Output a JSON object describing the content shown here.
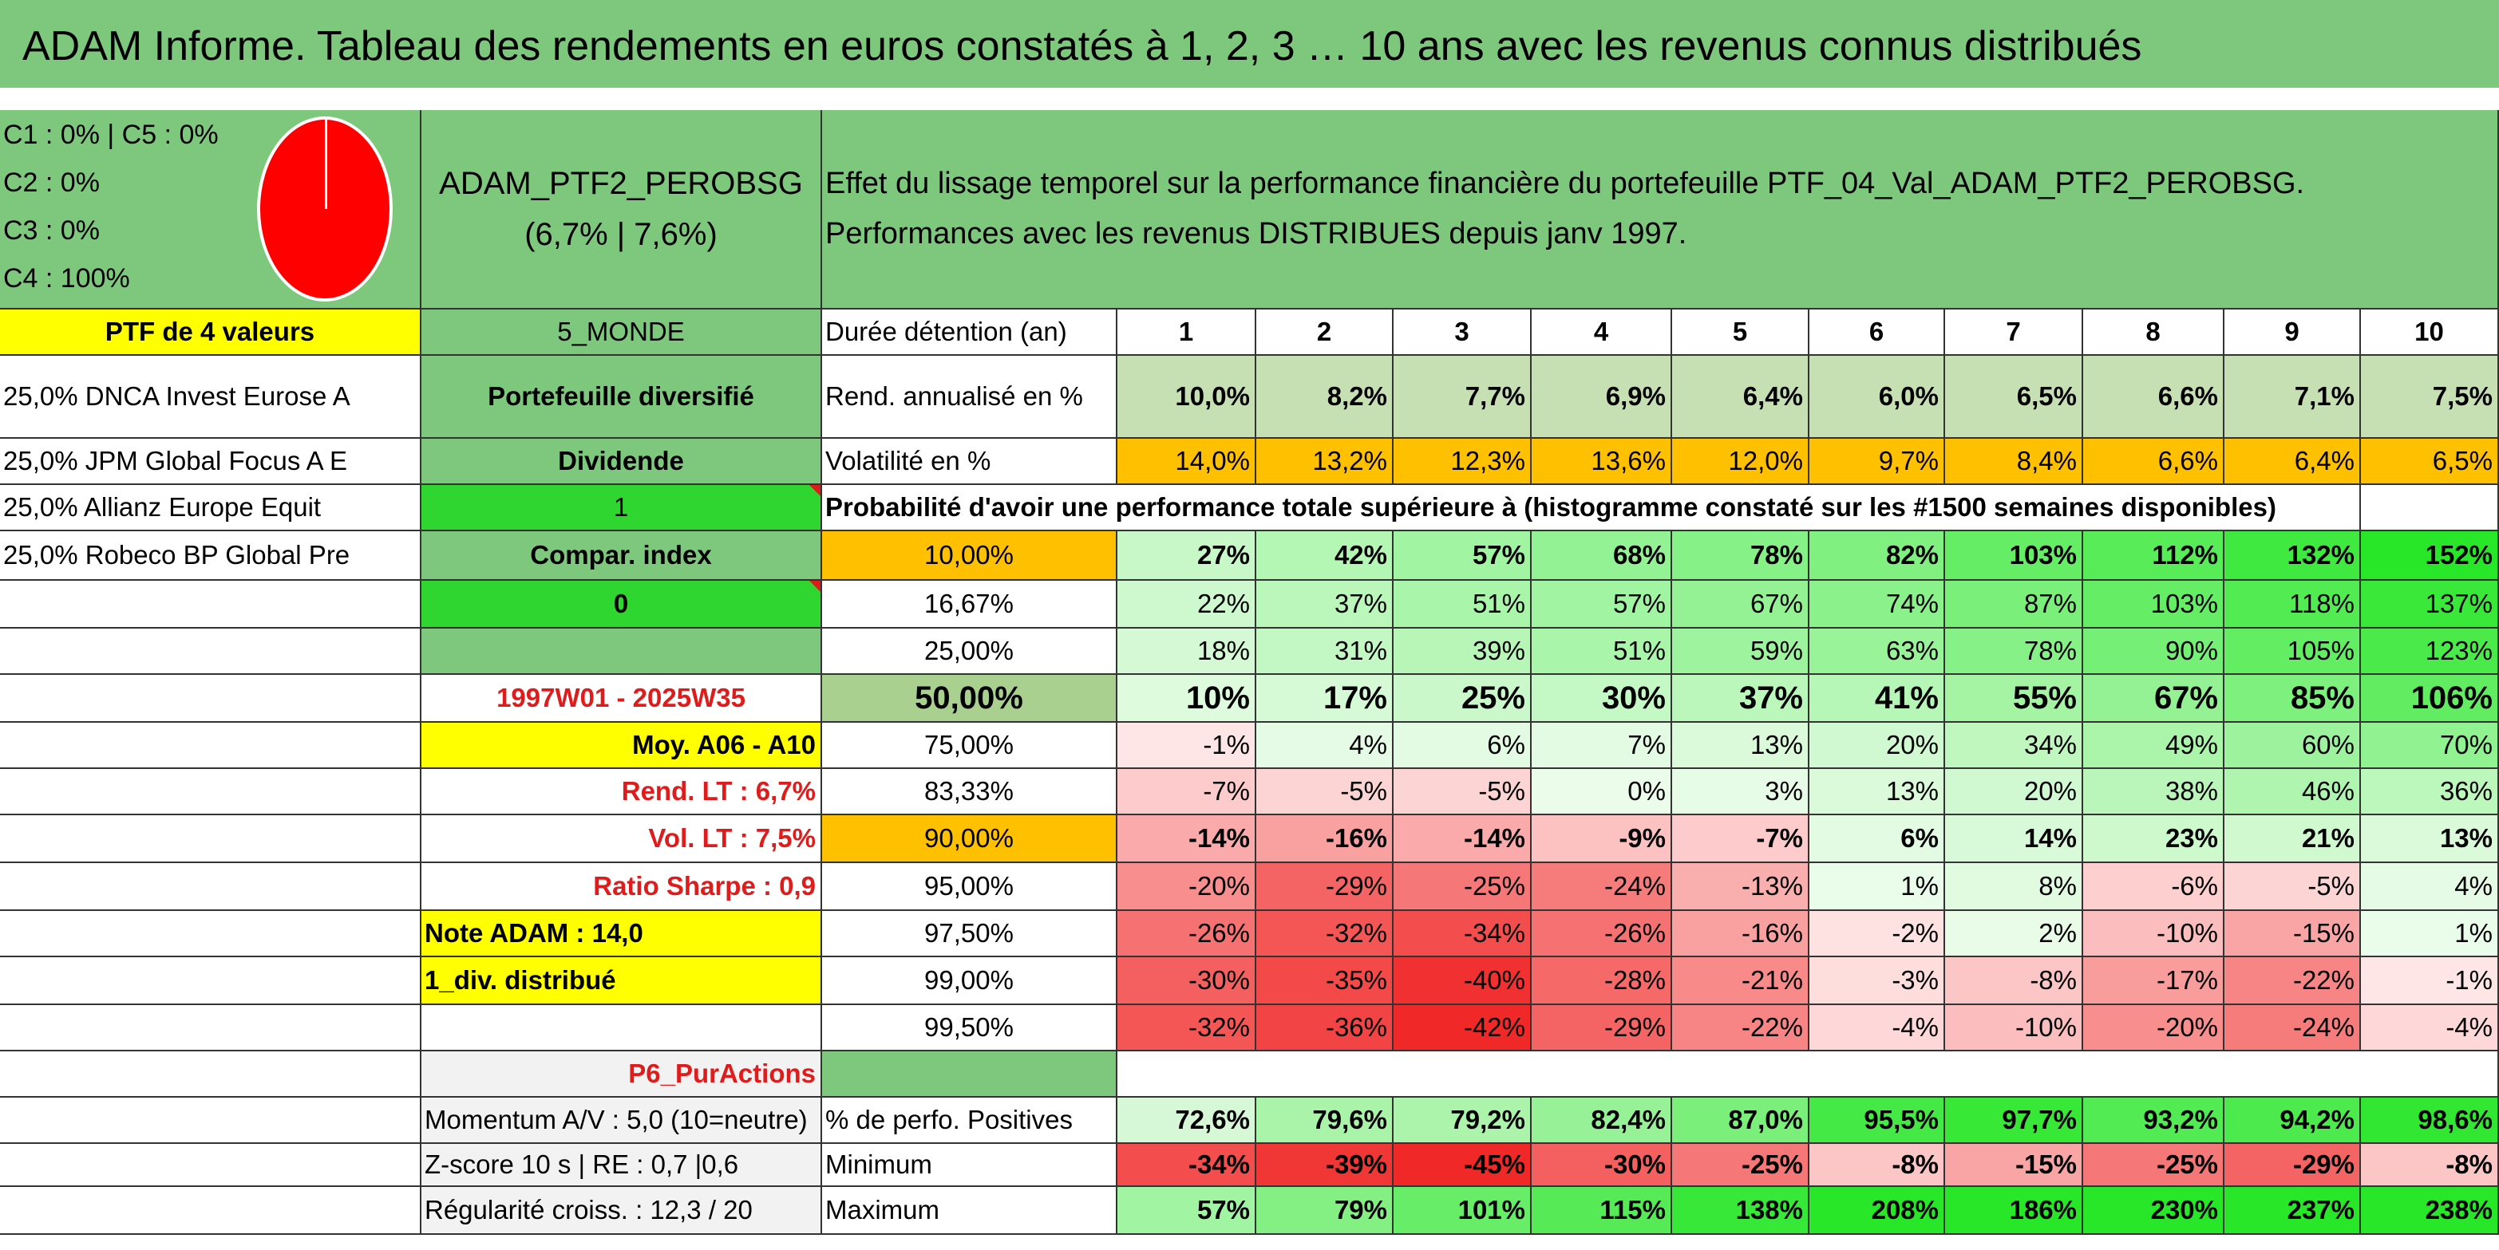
{
  "title": "ADAM Informe. Tableau des rendements en euros constatés à 1, 2, 3 … 10 ans avec les revenus connus distribués",
  "allocation": [
    "C1 : 0% | C5 : 0%",
    "C2 : 0%",
    "C3 : 0%",
    "C4 : 100%"
  ],
  "portfolio": {
    "name": "ADAM_PTF2_PEROBSG",
    "perf": "(6,7% | 7,6%)",
    "description": "Effet du lissage temporel sur la performance financière du portefeuille PTF_04_Val_ADAM_PTF2_PEROBSG. Performances avec les revenus DISTRIBUES depuis janv 1997.",
    "ptf_label": "PTF de 4 valeurs",
    "zone": "5_MONDE",
    "type": "Portefeuille diversifié",
    "dividende_label": "Dividende",
    "dividende_value": "1",
    "compar_label": "Compar. index",
    "compar_value": "0",
    "period": "1997W01 - 2025W35",
    "moy": "Moy. A06 - A10",
    "rend_lt": "Rend. LT : 6,7%",
    "vol_lt": "Vol. LT : 7,5%",
    "sharpe": "Ratio Sharpe : 0,9",
    "note": "Note ADAM : 14,0",
    "div": "1_div. distribué",
    "category": "P6_PurActions",
    "momentum": "Momentum A/V : 5,0 (10=neutre)",
    "zscore": "Z-score 10 s | RE : 0,7 |0,6",
    "regularite": "Régularité croiss. : 12,3 / 20"
  },
  "holdings": [
    "25,0% DNCA Invest Eurose A",
    "25,0% JPM Global Focus A E",
    "25,0% Allianz Europe Equit",
    "25,0% Robeco BP Global Pre"
  ],
  "table": {
    "duree_label": "Durée détention (an)",
    "years": [
      "1",
      "2",
      "3",
      "4",
      "5",
      "6",
      "7",
      "8",
      "9",
      "10"
    ],
    "rend_label": "Rend. annualisé en %",
    "rend": [
      "10,0%",
      "8,2%",
      "7,7%",
      "6,9%",
      "6,4%",
      "6,0%",
      "6,5%",
      "6,6%",
      "7,1%",
      "7,5%"
    ],
    "vol_label": "Volatilité en %",
    "vol": [
      "14,0%",
      "13,2%",
      "12,3%",
      "13,6%",
      "12,0%",
      "9,7%",
      "8,4%",
      "6,6%",
      "6,4%",
      "6,5%"
    ],
    "proba_title": "Probabilité d'avoir une performance totale supérieure à (histogramme constaté sur les #1500 semaines disponibles)",
    "quantiles": [
      {
        "label": "10,00%",
        "values": [
          "27%",
          "42%",
          "57%",
          "68%",
          "78%",
          "82%",
          "103%",
          "112%",
          "132%",
          "152%"
        ]
      },
      {
        "label": "16,67%",
        "values": [
          "22%",
          "37%",
          "51%",
          "57%",
          "67%",
          "74%",
          "87%",
          "103%",
          "118%",
          "137%"
        ]
      },
      {
        "label": "25,00%",
        "values": [
          "18%",
          "31%",
          "39%",
          "51%",
          "59%",
          "63%",
          "78%",
          "90%",
          "105%",
          "123%"
        ]
      },
      {
        "label": "50,00%",
        "values": [
          "10%",
          "17%",
          "25%",
          "30%",
          "37%",
          "41%",
          "55%",
          "67%",
          "85%",
          "106%"
        ]
      },
      {
        "label": "75,00%",
        "values": [
          "-1%",
          "4%",
          "6%",
          "7%",
          "13%",
          "20%",
          "34%",
          "49%",
          "60%",
          "70%"
        ]
      },
      {
        "label": "83,33%",
        "values": [
          "-7%",
          "-5%",
          "-5%",
          "0%",
          "3%",
          "13%",
          "20%",
          "38%",
          "46%",
          "36%"
        ]
      },
      {
        "label": "90,00%",
        "values": [
          "-14%",
          "-16%",
          "-14%",
          "-9%",
          "-7%",
          "6%",
          "14%",
          "23%",
          "21%",
          "13%"
        ]
      },
      {
        "label": "95,00%",
        "values": [
          "-20%",
          "-29%",
          "-25%",
          "-24%",
          "-13%",
          "1%",
          "8%",
          "-6%",
          "-5%",
          "4%"
        ]
      },
      {
        "label": "97,50%",
        "values": [
          "-26%",
          "-32%",
          "-34%",
          "-26%",
          "-16%",
          "-2%",
          "2%",
          "-10%",
          "-15%",
          "1%"
        ]
      },
      {
        "label": "99,00%",
        "values": [
          "-30%",
          "-35%",
          "-40%",
          "-28%",
          "-21%",
          "-3%",
          "-8%",
          "-17%",
          "-22%",
          "-1%"
        ]
      },
      {
        "label": "99,50%",
        "values": [
          "-32%",
          "-36%",
          "-42%",
          "-29%",
          "-22%",
          "-4%",
          "-10%",
          "-20%",
          "-24%",
          "-4%"
        ]
      }
    ],
    "pos_label": "% de perfo. Positives",
    "pos": [
      "72,6%",
      "79,6%",
      "79,2%",
      "82,4%",
      "87,0%",
      "95,5%",
      "97,7%",
      "93,2%",
      "94,2%",
      "98,6%"
    ],
    "min_label": "Minimum",
    "min": [
      "-34%",
      "-39%",
      "-45%",
      "-30%",
      "-25%",
      "-8%",
      "-15%",
      "-25%",
      "-29%",
      "-8%"
    ],
    "max_label": "Maximum",
    "max": [
      "57%",
      "79%",
      "101%",
      "115%",
      "138%",
      "208%",
      "186%",
      "230%",
      "237%",
      "238%"
    ]
  }
}
